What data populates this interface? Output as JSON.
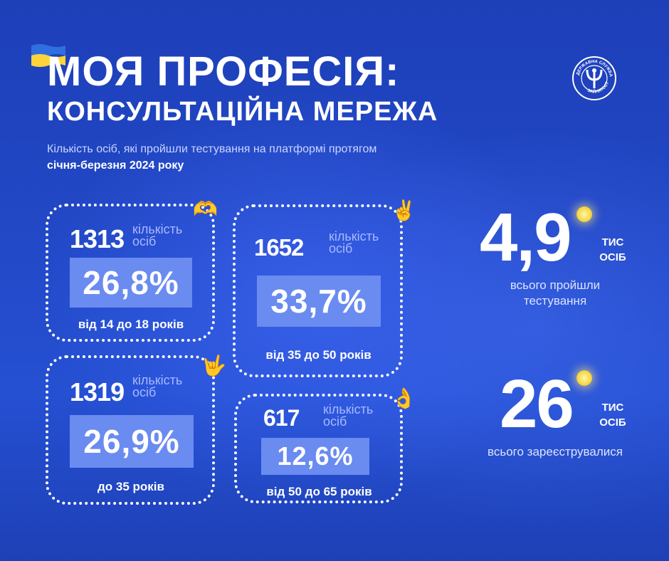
{
  "header": {
    "title_line1": "МОЯ ПРОФЕСІЯ:",
    "title_line2": "КОНСУЛЬТАЦІЙНА МЕРЕЖА",
    "subtitle_line1": "Кількість осіб, які пройшли тестування на платформі протягом",
    "subtitle_line2": "січня-березня 2024 року"
  },
  "flag": {
    "top_color": "#2f6fe0",
    "bottom_color": "#ffd43a"
  },
  "logo": {
    "text": "ДЕРЖАВНА СЛУЖБА ЗАЙНЯТОСТІ",
    "icon": "employment-service-emblem"
  },
  "cards": [
    {
      "count": "1313",
      "label": "кількість\nосіб",
      "percent": "26,8%",
      "age": "від 14 до 18 років",
      "emoji": "🫶"
    },
    {
      "count": "1652",
      "label": "кількість\nосіб",
      "percent": "33,7%",
      "age": "від 35 до 50 років",
      "emoji": "✌️"
    },
    {
      "count": "1319",
      "label": "кількість\nосіб",
      "percent": "26,9%",
      "age": "до 35 років",
      "emoji": "🤟"
    },
    {
      "count": "617",
      "label": "кількість\nосіб",
      "percent": "12,6%",
      "age": "від 50 до 65 років",
      "emoji": "👌"
    }
  ],
  "totals": [
    {
      "value": "4,9",
      "unit_line1": "ТИС",
      "unit_line2": "ОСІБ",
      "caption_line1": "всього пройшли",
      "caption_line2": "тестування"
    },
    {
      "value": "26",
      "unit_line1": "ТИС",
      "unit_line2": "ОСІБ",
      "caption_line1": "всього зареєструвалися",
      "caption_line2": ""
    }
  ],
  "colors": {
    "background": "#2248c6",
    "percent_box": "#6a8bf0",
    "label": "#a8b8ff",
    "dot": "#f6d94a"
  }
}
